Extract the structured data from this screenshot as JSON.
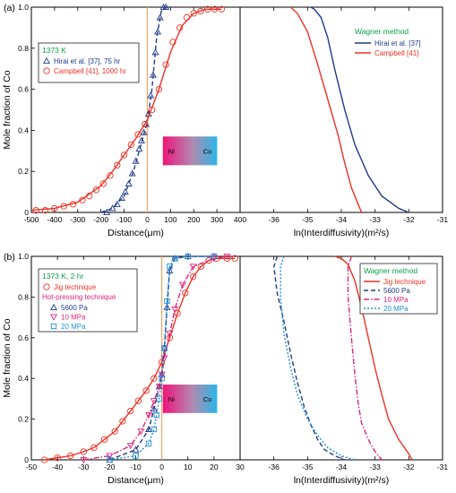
{
  "colors": {
    "blue": "#1f3a8a",
    "red": "#ee3124",
    "teal": "#1e8fd6",
    "magenta": "#e0257a",
    "orange": "#f4a460",
    "green": "#0aa04a"
  },
  "chart_data": [
    {
      "type": "scatter",
      "panel_label": "(a)",
      "xlabel": "Distance(μm)",
      "ylabel": "Mole fraction of Co",
      "xlim": [
        -500,
        400
      ],
      "ylim": [
        0,
        1.0
      ],
      "xticks": [
        "-500",
        "-400",
        "-300",
        "-200",
        "-100",
        "0",
        "100",
        "200",
        "300",
        "400"
      ],
      "yticks": [
        "0",
        "0.2",
        "0.4",
        "0.6",
        "0.8",
        "1.0"
      ],
      "legend_title": "1373 K",
      "series": [
        {
          "name": "Hirai et al. [37], 75 hr",
          "marker": "triangle",
          "color": "#1f3a8a",
          "x": [
            -175,
            -150,
            -130,
            -110,
            -95,
            -80,
            -65,
            -50,
            -35,
            -25,
            -15,
            -5,
            5,
            15,
            25,
            35,
            45,
            55,
            70,
            80
          ],
          "y": [
            0.0,
            0.02,
            0.04,
            0.07,
            0.1,
            0.14,
            0.19,
            0.25,
            0.31,
            0.35,
            0.39,
            0.43,
            0.48,
            0.57,
            0.67,
            0.78,
            0.88,
            0.95,
            1.0,
            1.0
          ],
          "fit_x": [
            -200,
            -150,
            -100,
            -60,
            -30,
            0,
            20,
            40,
            60,
            80,
            100
          ],
          "fit_y": [
            0.0,
            0.02,
            0.08,
            0.2,
            0.32,
            0.44,
            0.6,
            0.85,
            0.98,
            1.0,
            1.0
          ]
        },
        {
          "name": "Campbell [41], 1000 hr",
          "marker": "circle",
          "color": "#ee3124",
          "x": [
            -480,
            -440,
            -400,
            -360,
            -320,
            -280,
            -250,
            -220,
            -190,
            -160,
            -130,
            -100,
            -70,
            -40,
            -10,
            20,
            50,
            80,
            110,
            140,
            170,
            200,
            230,
            260,
            290,
            320
          ],
          "y": [
            0.01,
            0.01,
            0.02,
            0.03,
            0.04,
            0.06,
            0.08,
            0.11,
            0.14,
            0.18,
            0.23,
            0.28,
            0.33,
            0.38,
            0.43,
            0.5,
            0.6,
            0.72,
            0.83,
            0.9,
            0.95,
            0.97,
            0.98,
            0.99,
            0.99,
            0.99
          ],
          "fit_x": [
            -500,
            -400,
            -300,
            -200,
            -150,
            -100,
            -50,
            0,
            50,
            100,
            150,
            200,
            250,
            320
          ],
          "fit_y": [
            0.01,
            0.02,
            0.05,
            0.13,
            0.2,
            0.28,
            0.36,
            0.45,
            0.6,
            0.78,
            0.91,
            0.97,
            0.99,
            0.99
          ]
        }
      ],
      "interface_x": 0,
      "inset_labels": [
        "Ni",
        "Co"
      ]
    },
    {
      "type": "line",
      "xlabel": "ln(Interdiffusivity)(m²/s)",
      "xlim": [
        -37,
        -31
      ],
      "ylim": [
        0,
        1.0
      ],
      "xticks": [
        "-36",
        "-35",
        "-34",
        "-33",
        "-32",
        "-31"
      ],
      "legend_title": "Wagner method",
      "series": [
        {
          "name": "Hirai et al. [37]",
          "style": "solid",
          "color": "#1f3a8a",
          "x": [
            -34.9,
            -34.8,
            -34.6,
            -34.4,
            -34.2,
            -33.9,
            -33.6,
            -33.2,
            -32.8,
            -32.3,
            -32.0
          ],
          "y": [
            1.0,
            0.99,
            0.95,
            0.85,
            0.7,
            0.5,
            0.33,
            0.18,
            0.08,
            0.02,
            0.0
          ]
        },
        {
          "name": "Campbell [41]",
          "style": "solid",
          "color": "#ee3124",
          "x": [
            -35.5,
            -35.3,
            -35.0,
            -34.7,
            -34.4,
            -34.1,
            -33.9,
            -33.7,
            -33.5,
            -33.4
          ],
          "y": [
            1.0,
            0.97,
            0.88,
            0.72,
            0.55,
            0.38,
            0.24,
            0.12,
            0.04,
            0.0
          ]
        }
      ]
    },
    {
      "type": "scatter",
      "panel_label": "(b)",
      "xlabel": "Distance(μm)",
      "ylabel": "Mole fraction of Co",
      "xlim": [
        -50,
        30
      ],
      "ylim": [
        0,
        1.0
      ],
      "xticks": [
        "-50",
        "-40",
        "-30",
        "-20",
        "-10",
        "0",
        "10",
        "20",
        "30"
      ],
      "yticks": [
        "0",
        "0.2",
        "0.4",
        "0.6",
        "0.8",
        "1.0"
      ],
      "legend_title": "1373 K, 2 hr",
      "legend_subtitle": "Hot-pressing technique",
      "series": [
        {
          "name": "Jig technique",
          "marker": "circle",
          "color": "#ee3124",
          "x": [
            -45,
            -40,
            -35,
            -30,
            -26,
            -22,
            -18,
            -15,
            -12,
            -9,
            -6,
            -3,
            0,
            3,
            6,
            9,
            12,
            15,
            18,
            21,
            25,
            28
          ],
          "y": [
            0.0,
            0.01,
            0.02,
            0.04,
            0.06,
            0.1,
            0.14,
            0.19,
            0.24,
            0.29,
            0.34,
            0.4,
            0.48,
            0.6,
            0.72,
            0.82,
            0.9,
            0.95,
            0.98,
            0.99,
            0.99,
            0.99
          ]
        },
        {
          "name": "5600 Pa",
          "marker": "triangle",
          "color": "#1f3a8a",
          "x": [
            -20,
            -10,
            -5,
            -3,
            -1,
            0,
            1,
            2,
            3,
            5,
            10,
            20
          ],
          "y": [
            0.0,
            0.05,
            0.15,
            0.25,
            0.36,
            0.42,
            0.55,
            0.75,
            0.93,
            0.99,
            1.0,
            1.0
          ]
        },
        {
          "name": "10 MPa",
          "marker": "triangle-down",
          "color": "#e0257a",
          "x": [
            -30,
            -20,
            -12,
            -8,
            -5,
            -3,
            -1,
            0,
            1,
            3,
            5,
            8,
            12,
            20,
            25
          ],
          "y": [
            0.0,
            0.02,
            0.07,
            0.14,
            0.22,
            0.29,
            0.36,
            0.42,
            0.5,
            0.62,
            0.74,
            0.86,
            0.95,
            0.99,
            1.0
          ]
        },
        {
          "name": "20 MPa",
          "marker": "square",
          "color": "#1e8fd6",
          "x": [
            -20,
            -10,
            -5,
            -3,
            -2,
            -1,
            0,
            1,
            2,
            3,
            5,
            10,
            20
          ],
          "y": [
            0.0,
            0.02,
            0.08,
            0.15,
            0.22,
            0.3,
            0.4,
            0.55,
            0.78,
            0.95,
            0.99,
            1.0,
            1.0
          ]
        }
      ],
      "interface_x": 0,
      "inset_labels": [
        "Ni",
        "Co"
      ]
    },
    {
      "type": "line",
      "xlabel": "ln(Interdiffusivity)(m²/s)",
      "xlim": [
        -37,
        -31
      ],
      "ylim": [
        0,
        1.0
      ],
      "xticks": [
        "-36",
        "-35",
        "-34",
        "-33",
        "-32",
        "-31"
      ],
      "legend_title": "Wagner method",
      "series": [
        {
          "name": "Jig technique",
          "style": "solid",
          "color": "#ee3124",
          "x": [
            -34.2,
            -34.0,
            -33.8,
            -33.6,
            -33.4,
            -33.2,
            -33.0,
            -32.8,
            -32.6,
            -32.3,
            -32.0,
            -31.9
          ],
          "y": [
            1.0,
            0.99,
            0.96,
            0.88,
            0.75,
            0.6,
            0.45,
            0.32,
            0.2,
            0.1,
            0.03,
            0.0
          ]
        },
        {
          "name": "5600 Pa",
          "style": "dashed",
          "color": "#1f3a8a",
          "x": [
            -35.9,
            -36.0,
            -35.9,
            -35.7,
            -35.5,
            -35.3,
            -35.1,
            -34.9,
            -34.7,
            -34.5,
            -34.2,
            -33.9
          ],
          "y": [
            1.0,
            0.95,
            0.82,
            0.68,
            0.52,
            0.38,
            0.26,
            0.17,
            0.1,
            0.05,
            0.02,
            0.0
          ]
        },
        {
          "name": "10 MPa",
          "style": "dashdot",
          "color": "#e0257a",
          "x": [
            -33.7,
            -33.8,
            -33.8,
            -33.7,
            -33.6,
            -33.5,
            -33.4,
            -33.2,
            -33.0,
            -32.8
          ],
          "y": [
            1.0,
            0.95,
            0.8,
            0.6,
            0.42,
            0.28,
            0.18,
            0.1,
            0.04,
            0.0
          ]
        },
        {
          "name": "20 MPa",
          "style": "dotted",
          "color": "#1e8fd6",
          "x": [
            -35.7,
            -35.8,
            -35.8,
            -35.7,
            -35.5,
            -35.3,
            -35.0,
            -34.7,
            -34.4,
            -34.0,
            -33.6
          ],
          "y": [
            1.0,
            0.95,
            0.8,
            0.62,
            0.45,
            0.32,
            0.2,
            0.12,
            0.06,
            0.02,
            0.0
          ]
        }
      ]
    }
  ]
}
